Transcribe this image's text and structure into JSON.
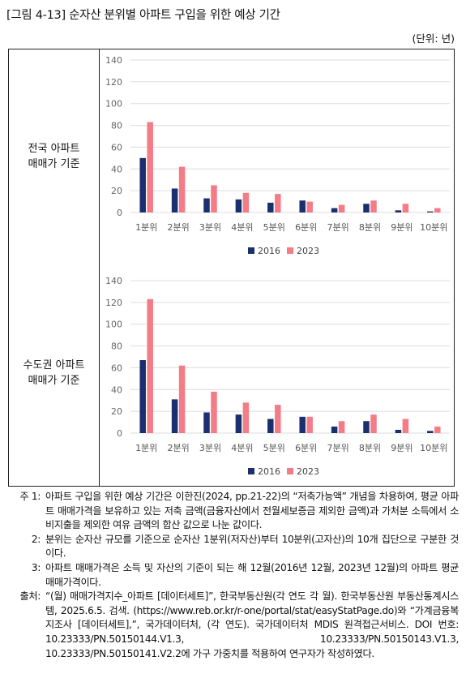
{
  "title": "[그림 4-13] 순자산 분위별 아파트 구입을 위한 예상 기간",
  "unit": "(단위: 년)",
  "row_labels": [
    "전국 아파트\n매매가 기준",
    "수도권 아파트\n매매가 기준"
  ],
  "colors": {
    "2016": "#1b2f6e",
    "2023": "#f47c86",
    "grid": "#dcdcdc",
    "tick": "#666666"
  },
  "chart_data": [
    {
      "type": "bar",
      "categories": [
        "1분위",
        "2분위",
        "3분위",
        "4분위",
        "5분위",
        "6분위",
        "7분위",
        "8분위",
        "9분위",
        "10분위"
      ],
      "series": [
        {
          "name": "2016",
          "values": [
            50,
            22,
            13,
            12,
            9,
            11,
            4,
            8,
            2,
            1
          ]
        },
        {
          "name": "2023",
          "values": [
            83,
            42,
            25,
            18,
            17,
            10,
            7,
            11,
            8,
            4
          ]
        }
      ],
      "yticks": [
        0,
        20,
        40,
        60,
        80,
        100,
        120,
        140
      ],
      "ylim": [
        0,
        140
      ],
      "grid": true,
      "legend": "bottom-center"
    },
    {
      "type": "bar",
      "categories": [
        "1분위",
        "2분위",
        "3분위",
        "4분위",
        "5분위",
        "6분위",
        "7분위",
        "8분위",
        "9분위",
        "10분위"
      ],
      "series": [
        {
          "name": "2016",
          "values": [
            67,
            31,
            19,
            17,
            13,
            15,
            6,
            11,
            3,
            2
          ]
        },
        {
          "name": "2023",
          "values": [
            123,
            62,
            38,
            28,
            26,
            15,
            11,
            17,
            13,
            6
          ]
        }
      ],
      "yticks": [
        0,
        20,
        40,
        60,
        80,
        100,
        120,
        140
      ],
      "ylim": [
        0,
        140
      ],
      "grid": true,
      "legend": "bottom-center"
    }
  ],
  "notes": [
    {
      "num": "주 1:",
      "text": "아파트 구입을 위한 예상 기간은 이한진(2024, pp.21-22)의 “저축가능액” 개념을 차용하여, 평균 아파트 매매가격을 보유하고 있는 저축 금액(금융자산에서 전월세보증금 제외한 금액)과 가처분 소득에서 소비지출을 제외한 여유 금액의 합산 값으로 나눈 값이다."
    },
    {
      "num": "2:",
      "text": "분위는 순자산 규모를 기준으로 순자산 1분위(저자산)부터 10분위(고자산)의 10개 집단으로 구분한 것이다."
    },
    {
      "num": "3:",
      "text": "아파트 매매가격은 소득 및 자산의 기준이 되는 해 12월(2016년 12월, 2023년 12월)의 아파트 평균 매매가격이다."
    },
    {
      "num": "출처:",
      "text": "“(월) 매매가격지수_아파트 [데이터세트]”, 한국부동산원(각 연도 각 월). 한국부동산원 부동산통계시스템, 2025.6.5. 검색. (https://www.reb.or.kr/r-one/portal/stat/easyStatPage.do)와 “가계금융복지조사 [데이터세트],”, 국가데이터처, (각 연도). 국가데이터처 MDIS 원격접근서비스. DOI 번호: 10.23333/PN.50150144.V1.3, 10.23333/PN.50150143.V1.3, 10.23333/PN.50150141.V2.2에 가구 가중치를 적용하여 연구자가 작성하였다."
    }
  ]
}
